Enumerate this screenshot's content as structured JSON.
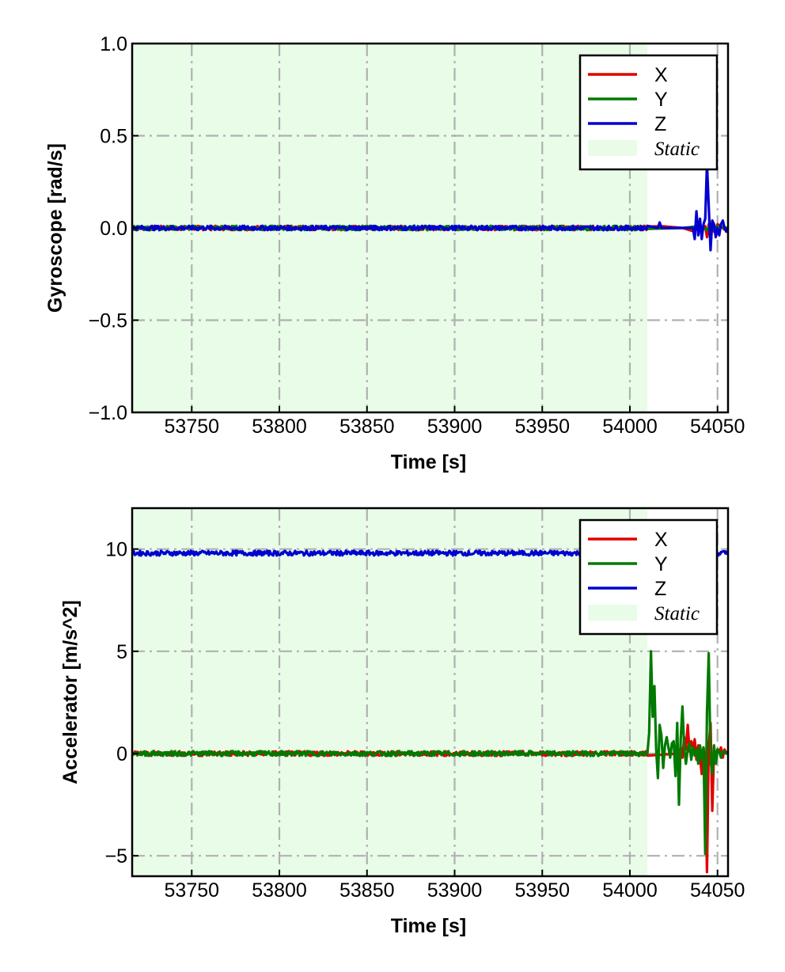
{
  "colors": {
    "X": "#e00000",
    "Y": "#007a00",
    "Z": "#0000d0",
    "static_fill": "#e8fce8",
    "grid": "#b0b0b0"
  },
  "chart_data": [
    {
      "type": "line",
      "xlabel": "Time [s]",
      "ylabel": "Gyroscope [rad/s]",
      "xlim": [
        53716,
        54056
      ],
      "ylim": [
        -1.0,
        1.0
      ],
      "xticks": [
        53750,
        53800,
        53850,
        53900,
        53950,
        54000,
        54050
      ],
      "xtick_labels": [
        "53750",
        "53800",
        "53850",
        "53900",
        "53950",
        "54000",
        "54050"
      ],
      "yticks": [
        -1.0,
        -0.5,
        0.0,
        0.5,
        1.0
      ],
      "ytick_labels": [
        "−1.0",
        "−0.5",
        "0.0",
        "0.5",
        "1.0"
      ],
      "grid": true,
      "legend_position": "top-right",
      "static_region": {
        "x_start": 53716,
        "x_end": 54010,
        "label": "Static"
      },
      "series": [
        {
          "name": "X",
          "x": [
            53716,
            54010,
            54018,
            54030,
            54037,
            54039,
            54041,
            54043,
            54044,
            54045,
            54046,
            54047,
            54048,
            54050,
            54052,
            54054,
            54056
          ],
          "y": [
            0,
            0,
            0.01,
            0,
            -0.02,
            0.03,
            -0.02,
            0.01,
            -0.05,
            0.02,
            -0.03,
            0.04,
            -0.02,
            0.02,
            0.01,
            -0.01,
            0
          ]
        },
        {
          "name": "Y",
          "x": [
            53716,
            54010,
            54030,
            54040,
            54044,
            54046,
            54048,
            54050,
            54056
          ],
          "y": [
            0,
            0,
            0,
            0.01,
            -0.01,
            0.02,
            -0.01,
            0.01,
            0
          ]
        },
        {
          "name": "Z",
          "x": [
            53716,
            54010,
            54016,
            54017,
            54018,
            54036,
            54037,
            54038,
            54039,
            54040,
            54041,
            54042,
            54043,
            54044,
            54045,
            54046,
            54047,
            54048,
            54049,
            54050,
            54051,
            54052,
            54053,
            54054,
            54055,
            54056
          ],
          "y": [
            0,
            0,
            0,
            0.03,
            0,
            0,
            -0.06,
            0.09,
            -0.04,
            0.05,
            -0.06,
            0.02,
            0.05,
            0.35,
            0.12,
            -0.12,
            0.04,
            0.02,
            -0.05,
            0.0,
            -0.04,
            0.02,
            0.04,
            0.0,
            -0.02,
            0
          ]
        }
      ]
    },
    {
      "type": "line",
      "xlabel": "Time [s]",
      "ylabel": "Accelerator [m/s^2]",
      "xlim": [
        53716,
        54056
      ],
      "ylim": [
        -6,
        12
      ],
      "xticks": [
        53750,
        53800,
        53850,
        53900,
        53950,
        54000,
        54050
      ],
      "xtick_labels": [
        "53750",
        "53800",
        "53850",
        "53900",
        "53950",
        "54000",
        "54050"
      ],
      "yticks": [
        -5,
        0,
        5,
        10
      ],
      "ytick_labels": [
        "−5",
        "0",
        "5",
        "10"
      ],
      "grid": true,
      "legend_position": "top-right",
      "static_region": {
        "x_start": 53716,
        "x_end": 54010,
        "label": "Static"
      },
      "series": [
        {
          "name": "X",
          "x": [
            53716,
            54010,
            54028,
            54029,
            54030,
            54031,
            54032,
            54033,
            54034,
            54035,
            54036,
            54037,
            54038,
            54039,
            54040,
            54041,
            54042,
            54043,
            54044,
            54045,
            54046,
            54047,
            54048,
            54049,
            54050,
            54051,
            54052,
            54053,
            54054,
            54055,
            54056
          ],
          "y": [
            0,
            0,
            0,
            0.3,
            -0.2,
            0.8,
            0.2,
            1.4,
            0.1,
            0.6,
            0.3,
            0.7,
            -0.3,
            0.4,
            -0.2,
            -1.0,
            0.3,
            -0.3,
            -5.8,
            0.3,
            1.5,
            -2.8,
            0.2,
            -0.1,
            0.2,
            0.1,
            0.3,
            -0.2,
            0.2,
            0,
            0.1
          ]
        },
        {
          "name": "Y",
          "x": [
            53716,
            54010,
            54011,
            54012,
            54013,
            54014,
            54015,
            54016,
            54017,
            54018,
            54019,
            54020,
            54021,
            54022,
            54023,
            54024,
            54025,
            54026,
            54027,
            54028,
            54029,
            54030,
            54031,
            54032,
            54033,
            54034,
            54035,
            54036,
            54037,
            54038,
            54039,
            54040,
            54041,
            54042,
            54043,
            54044,
            54045,
            54046,
            54047,
            54048,
            54049,
            54050,
            54051,
            54052,
            54053,
            54054,
            54055,
            54056
          ],
          "y": [
            0,
            0,
            1.0,
            5.0,
            1.8,
            3.3,
            0.2,
            -1.2,
            1.4,
            0.9,
            -0.7,
            0.4,
            0.8,
            0.3,
            -0.2,
            0.5,
            0.6,
            -1.1,
            1.5,
            -2.5,
            0.7,
            2.3,
            0.3,
            -0.5,
            0.2,
            0.5,
            -0.3,
            0.3,
            -0.1,
            0.2,
            -0.5,
            0.4,
            -0.3,
            0.3,
            -4.9,
            2.0,
            4.9,
            -0.3,
            -1.0,
            0.4,
            -0.5,
            0.2,
            0.1,
            -0.2,
            0.1,
            0.1,
            0,
            0
          ]
        },
        {
          "name": "Z",
          "x": [
            53716,
            54056
          ],
          "y": [
            9.8,
            9.8
          ]
        }
      ]
    }
  ]
}
